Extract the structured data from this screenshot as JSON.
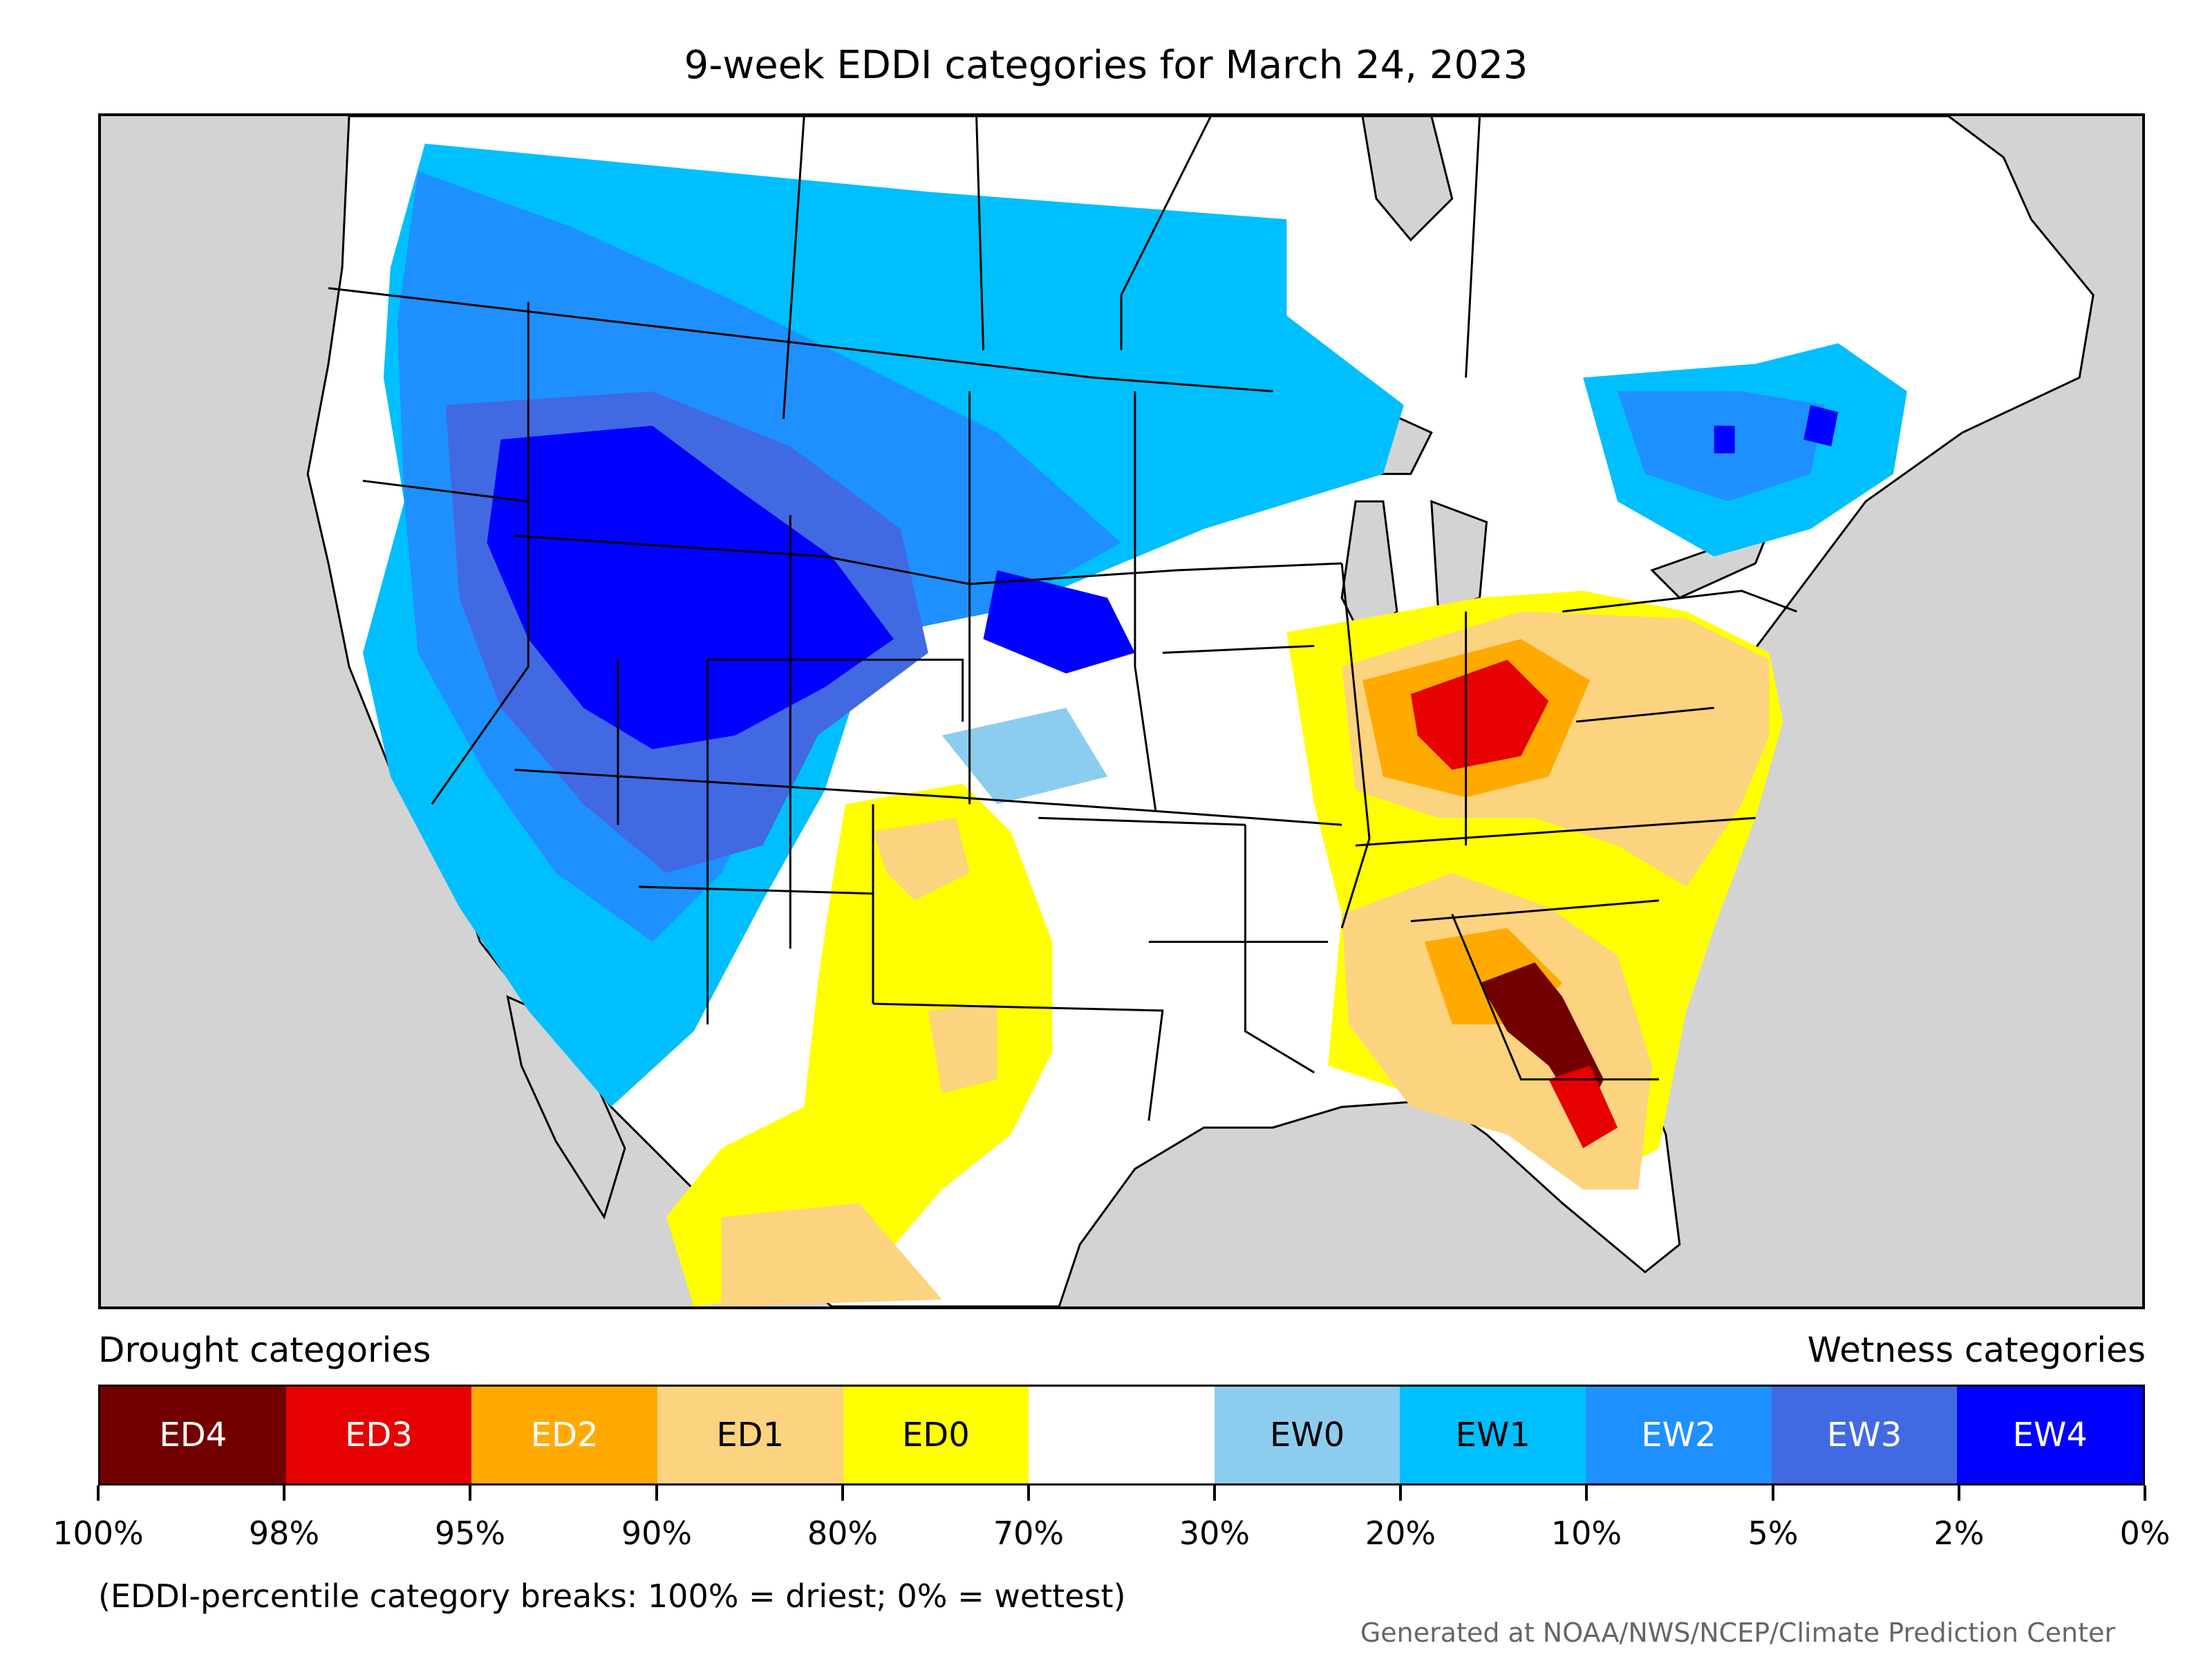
{
  "title": "9-week EDDI categories for March 24, 2023",
  "legend": {
    "drought_label": "Drought categories",
    "wetness_label": "Wetness categories",
    "categories": [
      {
        "label": "ED4",
        "color": "#730000",
        "text_color": "#ffffff"
      },
      {
        "label": "ED3",
        "color": "#e60000",
        "text_color": "#ffffff"
      },
      {
        "label": "ED2",
        "color": "#ffaa00",
        "text_color": "#ffffff"
      },
      {
        "label": "ED1",
        "color": "#fcd37f",
        "text_color": "#000000"
      },
      {
        "label": "ED0",
        "color": "#ffff00",
        "text_color": "#000000"
      },
      {
        "label": "",
        "color": "#ffffff",
        "text_color": "#000000"
      },
      {
        "label": "EW0",
        "color": "#8ccdef",
        "text_color": "#000000"
      },
      {
        "label": "EW1",
        "color": "#00bfff",
        "text_color": "#000000"
      },
      {
        "label": "EW2",
        "color": "#1e90ff",
        "text_color": "#ffffff"
      },
      {
        "label": "EW3",
        "color": "#4169e1",
        "text_color": "#ffffff"
      },
      {
        "label": "EW4",
        "color": "#0000ff",
        "text_color": "#ffffff"
      }
    ],
    "ticks": [
      "100%",
      "98%",
      "95%",
      "90%",
      "80%",
      "70%",
      "30%",
      "20%",
      "10%",
      "5%",
      "2%",
      "0%"
    ]
  },
  "note": "(EDDI-percentile category breaks: 100% = driest; 0% = wettest)",
  "credit": "Generated at NOAA/NWS/NCEP/Climate Prediction Center",
  "colors": {
    "background_land": "#ffffff",
    "ocean": "#d3d3d3"
  }
}
